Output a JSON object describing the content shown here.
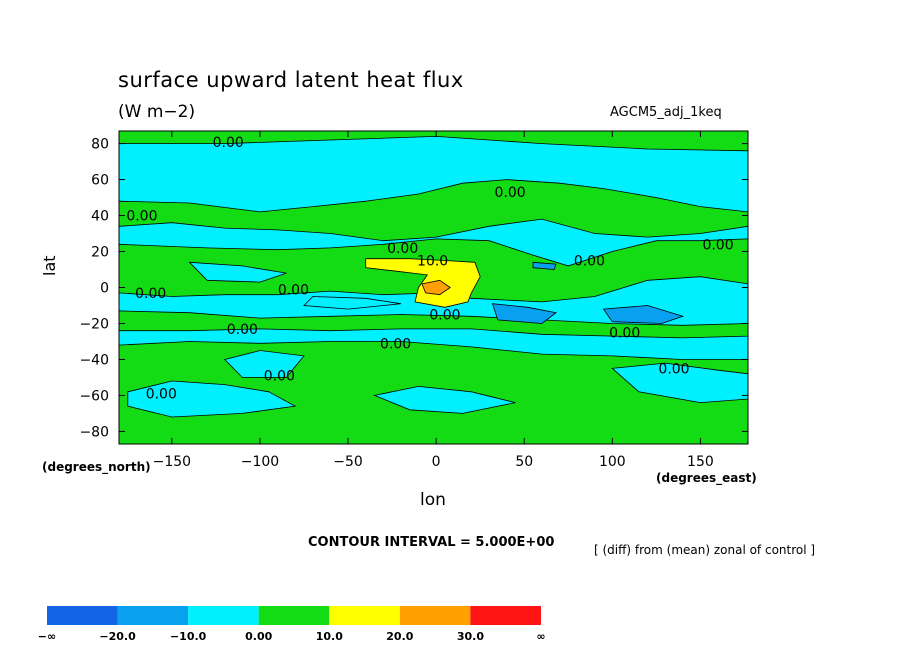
{
  "title": "surface upward latent heat flux",
  "units": "(W m−2)",
  "model_label": "AGCM5_adj_1keq",
  "contour_interval": "CONTOUR INTERVAL = 5.000E+00",
  "note": "[ (diff) from (mean) zonal of control ]",
  "colors": {
    "lt_m20": "#1464e6",
    "m20_m10": "#0aa0f0",
    "m10_0": "#00f0ff",
    "p0_10": "#14dc14",
    "p10_20": "#ffff00",
    "p20_30": "#ffa000",
    "p30_inf": "#ff1414"
  },
  "colorbar": {
    "labels": [
      "−∞",
      "−20.0",
      "−10.0",
      "0.00",
      "10.0",
      "20.0",
      "30.0",
      "∞"
    ],
    "colors": [
      "#1464e6",
      "#0aa0f0",
      "#00f0ff",
      "#14dc14",
      "#ffff00",
      "#ffa000",
      "#ff1414"
    ]
  },
  "chart_data": {
    "type": "heatmap",
    "title": "surface upward latent heat flux",
    "subtitle": "(W m−2)",
    "xlabel": "lon",
    "xunits": "(degrees_east)",
    "ylabel": "lat",
    "yunits": "(degrees_north)",
    "xlim": [
      -180,
      177
    ],
    "ylim": [
      -87,
      87
    ],
    "xticks": [
      -150,
      -100,
      -50,
      0,
      50,
      100,
      150
    ],
    "xtick_labels": [
      "−150",
      "−100",
      "−50",
      "0",
      "50",
      "100",
      "150"
    ],
    "yticks": [
      80,
      60,
      40,
      20,
      0,
      -20,
      -40,
      -60,
      -80
    ],
    "ytick_labels": [
      "80",
      "60",
      "40",
      "20",
      "0",
      "−20",
      "−40",
      "−60",
      "−80"
    ],
    "levels": [
      -20,
      -10,
      0,
      10,
      20,
      30
    ],
    "background_value_class": "m10_0",
    "regions": [
      {
        "cls": "p0_10",
        "pts": [
          [
            -180,
            48
          ],
          [
            -140,
            47
          ],
          [
            -100,
            42
          ],
          [
            -70,
            45
          ],
          [
            -40,
            48
          ],
          [
            -10,
            52
          ],
          [
            15,
            58
          ],
          [
            40,
            60
          ],
          [
            70,
            58
          ],
          [
            95,
            55
          ],
          [
            125,
            50
          ],
          [
            150,
            45
          ],
          [
            177,
            42
          ],
          [
            177,
            34
          ],
          [
            150,
            30
          ],
          [
            120,
            28
          ],
          [
            90,
            30
          ],
          [
            60,
            38
          ],
          [
            30,
            34
          ],
          [
            0,
            28
          ],
          [
            -30,
            26
          ],
          [
            -60,
            30
          ],
          [
            -90,
            32
          ],
          [
            -120,
            33
          ],
          [
            -150,
            36
          ],
          [
            -180,
            34
          ]
        ]
      },
      {
        "cls": "p0_10",
        "pts": [
          [
            -180,
            24
          ],
          [
            -130,
            22
          ],
          [
            -90,
            21
          ],
          [
            -60,
            22
          ],
          [
            -30,
            24
          ],
          [
            0,
            27
          ],
          [
            30,
            26
          ],
          [
            55,
            18
          ],
          [
            75,
            12
          ],
          [
            100,
            20
          ],
          [
            125,
            26
          ],
          [
            150,
            26
          ],
          [
            177,
            27
          ],
          [
            177,
            2
          ],
          [
            150,
            6
          ],
          [
            120,
            4
          ],
          [
            90,
            -5
          ],
          [
            60,
            -8
          ],
          [
            40,
            -7
          ],
          [
            20,
            -6
          ],
          [
            0,
            -3
          ],
          [
            -30,
            -4
          ],
          [
            -60,
            -2
          ],
          [
            -90,
            -4
          ],
          [
            -120,
            -4
          ],
          [
            -150,
            -5
          ],
          [
            -180,
            -3
          ]
        ]
      },
      {
        "cls": "p0_10",
        "pts": [
          [
            -180,
            -13
          ],
          [
            -140,
            -14
          ],
          [
            -100,
            -17
          ],
          [
            -60,
            -16
          ],
          [
            -20,
            -15
          ],
          [
            20,
            -16
          ],
          [
            60,
            -18
          ],
          [
            100,
            -20
          ],
          [
            140,
            -21
          ],
          [
            177,
            -20
          ],
          [
            177,
            -27
          ],
          [
            140,
            -28
          ],
          [
            100,
            -27
          ],
          [
            60,
            -26
          ],
          [
            20,
            -23
          ],
          [
            -20,
            -23
          ],
          [
            -60,
            -24
          ],
          [
            -100,
            -23
          ],
          [
            -140,
            -24
          ],
          [
            -180,
            -24
          ]
        ]
      },
      {
        "cls": "p0_10",
        "pts": [
          [
            -180,
            -32
          ],
          [
            -140,
            -30
          ],
          [
            -100,
            -31
          ],
          [
            -60,
            -30
          ],
          [
            -20,
            -30
          ],
          [
            20,
            -33
          ],
          [
            60,
            -37
          ],
          [
            100,
            -38
          ],
          [
            140,
            -40
          ],
          [
            177,
            -40
          ],
          [
            177,
            -87
          ],
          [
            -180,
            -87
          ]
        ]
      },
      {
        "cls": "p0_10",
        "pts": [
          [
            -180,
            87
          ],
          [
            177,
            87
          ],
          [
            177,
            76
          ],
          [
            120,
            77
          ],
          [
            60,
            80
          ],
          [
            0,
            84
          ],
          [
            -60,
            82
          ],
          [
            -120,
            80
          ],
          [
            -180,
            80
          ]
        ]
      },
      {
        "cls": "m10_0",
        "pts": [
          [
            -175,
            -58
          ],
          [
            -150,
            -52
          ],
          [
            -120,
            -54
          ],
          [
            -95,
            -58
          ],
          [
            -80,
            -66
          ],
          [
            -110,
            -70
          ],
          [
            -150,
            -72
          ],
          [
            -175,
            -66
          ]
        ]
      },
      {
        "cls": "m10_0",
        "pts": [
          [
            -120,
            -40
          ],
          [
            -100,
            -35
          ],
          [
            -75,
            -38
          ],
          [
            -85,
            -50
          ],
          [
            -110,
            -50
          ]
        ]
      },
      {
        "cls": "m10_0",
        "pts": [
          [
            -35,
            -60
          ],
          [
            -10,
            -55
          ],
          [
            20,
            -58
          ],
          [
            45,
            -64
          ],
          [
            15,
            -70
          ],
          [
            -15,
            -68
          ]
        ]
      },
      {
        "cls": "m10_0",
        "pts": [
          [
            100,
            -45
          ],
          [
            130,
            -42
          ],
          [
            160,
            -46
          ],
          [
            177,
            -48
          ],
          [
            177,
            -62
          ],
          [
            150,
            -64
          ],
          [
            115,
            -58
          ]
        ]
      },
      {
        "cls": "m10_0",
        "pts": [
          [
            -140,
            14
          ],
          [
            -110,
            12
          ],
          [
            -85,
            8
          ],
          [
            -100,
            3
          ],
          [
            -130,
            4
          ]
        ]
      },
      {
        "cls": "m10_0",
        "pts": [
          [
            -70,
            -5
          ],
          [
            -40,
            -6
          ],
          [
            -20,
            -9
          ],
          [
            -50,
            -12
          ],
          [
            -75,
            -10
          ]
        ]
      },
      {
        "cls": "p10_20",
        "pts": [
          [
            -40,
            16
          ],
          [
            -15,
            16
          ],
          [
            5,
            15
          ],
          [
            22,
            14
          ],
          [
            25,
            6
          ],
          [
            20,
            -3
          ],
          [
            18,
            -8
          ],
          [
            5,
            -11
          ],
          [
            -12,
            -8
          ],
          [
            -10,
            0
          ],
          [
            -5,
            7
          ],
          [
            -22,
            9
          ],
          [
            -40,
            11
          ]
        ]
      },
      {
        "cls": "p20_30",
        "pts": [
          [
            -8,
            2
          ],
          [
            2,
            4
          ],
          [
            8,
            0
          ],
          [
            2,
            -4
          ],
          [
            -6,
            -3
          ]
        ]
      },
      {
        "cls": "m20_m10",
        "pts": [
          [
            32,
            -9
          ],
          [
            52,
            -11
          ],
          [
            68,
            -14
          ],
          [
            60,
            -20
          ],
          [
            35,
            -18
          ]
        ]
      },
      {
        "cls": "m20_m10",
        "pts": [
          [
            95,
            -12
          ],
          [
            120,
            -10
          ],
          [
            140,
            -16
          ],
          [
            128,
            -20
          ],
          [
            100,
            -19
          ]
        ]
      },
      {
        "cls": "m20_m10",
        "pts": [
          [
            55,
            14
          ],
          [
            68,
            13
          ],
          [
            67,
            10
          ],
          [
            55,
            11
          ]
        ]
      }
    ],
    "contour_labels": [
      {
        "text": "0.00",
        "x": -118,
        "y": 81
      },
      {
        "text": "0.00",
        "x": -167,
        "y": 40
      },
      {
        "text": "0.00",
        "x": 42,
        "y": 53
      },
      {
        "text": "0.00",
        "x": -19,
        "y": 22
      },
      {
        "text": "10.0",
        "x": -2,
        "y": 15
      },
      {
        "text": "0.00",
        "x": 87,
        "y": 15
      },
      {
        "text": "0.00",
        "x": 160,
        "y": 24
      },
      {
        "text": "0.00",
        "x": -162,
        "y": -3
      },
      {
        "text": "0.00",
        "x": -81,
        "y": -1
      },
      {
        "text": "0.00",
        "x": 5,
        "y": -15
      },
      {
        "text": "0.00",
        "x": -110,
        "y": -23
      },
      {
        "text": "0.00",
        "x": -23,
        "y": -31
      },
      {
        "text": "0.00",
        "x": 107,
        "y": -25
      },
      {
        "text": "0.00",
        "x": 135,
        "y": -45
      },
      {
        "text": "0.00",
        "x": -89,
        "y": -49
      },
      {
        "text": "0.00",
        "x": -156,
        "y": -59
      }
    ]
  }
}
